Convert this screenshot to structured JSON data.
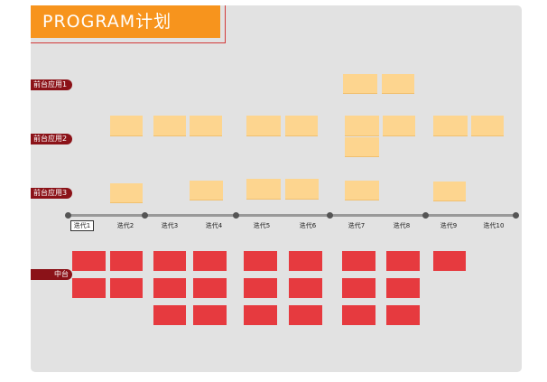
{
  "header": {
    "title": "PROGRAM计划"
  },
  "rows": {
    "frontend1": "前台应用1",
    "frontend2": "前台应用2",
    "frontend3": "前台应用3",
    "middle": "中台"
  },
  "timeline": {
    "iterations": [
      "迭代1",
      "迭代2",
      "迭代3",
      "迭代4",
      "迭代5",
      "迭代6",
      "迭代7",
      "迭代8",
      "迭代9",
      "迭代10"
    ],
    "current_iteration": "迭代1"
  },
  "colors": {
    "title_bg": "#f7941d",
    "sticky": "#fdd58f",
    "task": "#e63a3f",
    "row_tag": "#8b1218",
    "board": "#e2e2e2"
  }
}
